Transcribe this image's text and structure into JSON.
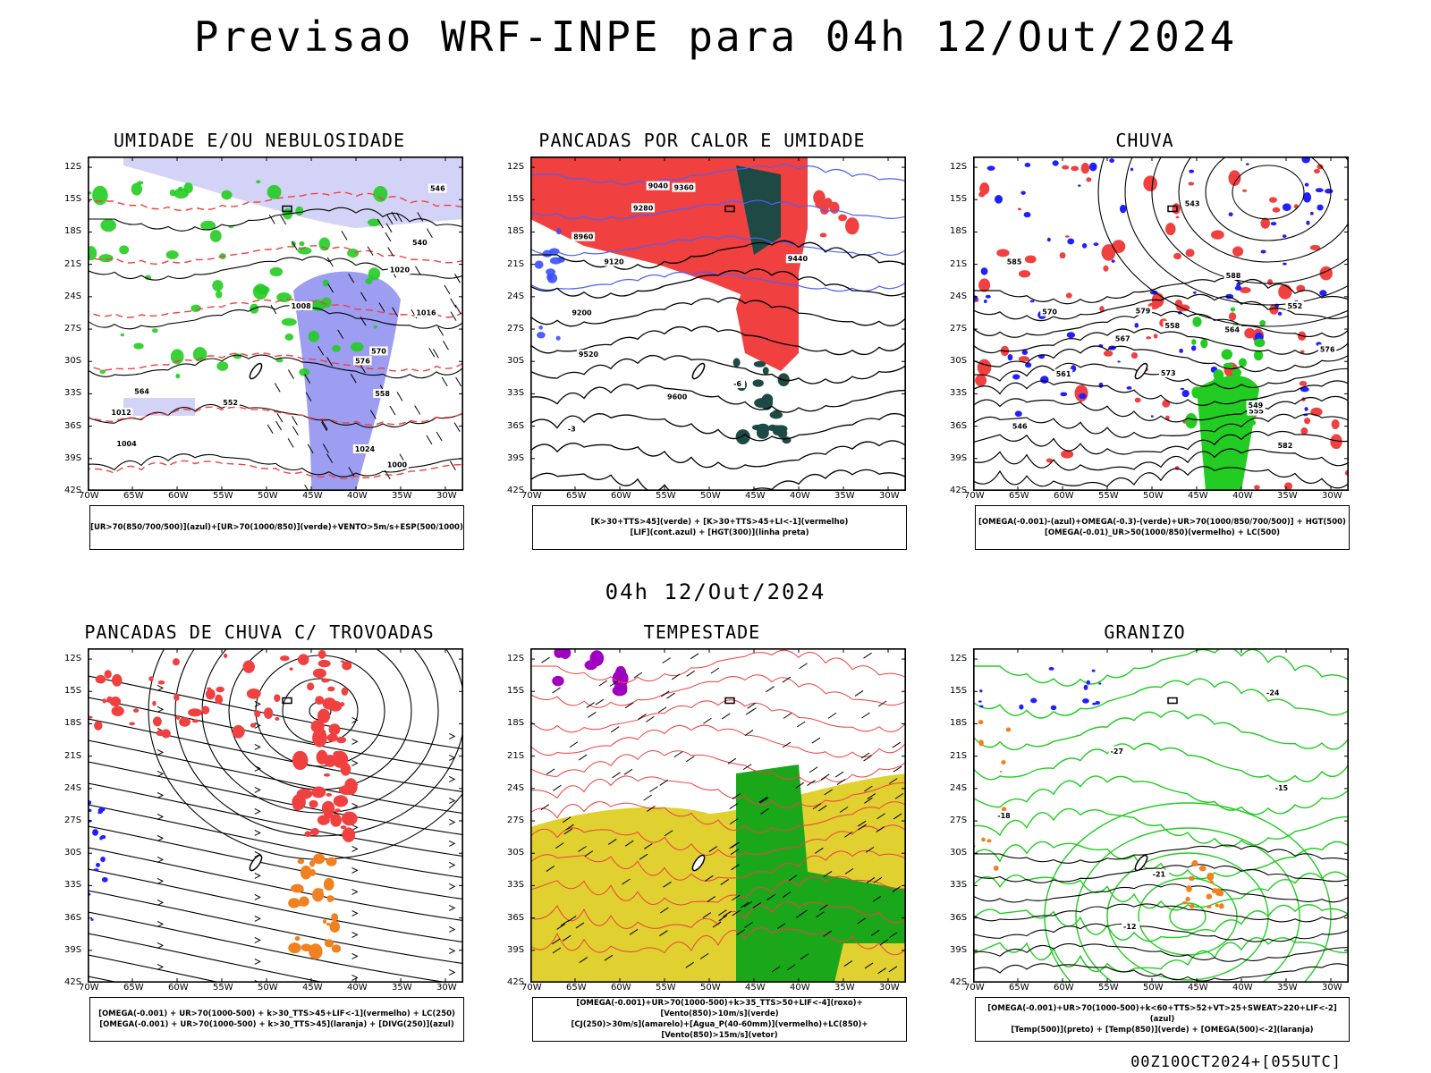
{
  "header": {
    "title": "Previsao WRF-INPE  para 04h 12/Out/2024"
  },
  "middle": {
    "title": "04h 12/Out/2024"
  },
  "footer": {
    "run": "00Z10OCT2024+[055UTC]"
  },
  "axes": {
    "lat_ticks": [
      "12S",
      "15S",
      "18S",
      "21S",
      "24S",
      "27S",
      "30S",
      "33S",
      "36S",
      "39S",
      "42S"
    ],
    "lon_ticks": [
      "70W",
      "65W",
      "60W",
      "55W",
      "50W",
      "45W",
      "40W",
      "35W",
      "30W"
    ]
  },
  "panels": [
    {
      "id": "umidade",
      "title": "UMIDADE E/OU NEBULOSIDADE",
      "legend": [
        "[UR>70(850/700/500)](azul)+[UR>70(1000/850)](verde)+VENTO>5m/s+ESP(500/1000)"
      ],
      "labels": [
        "1012",
        "1024",
        "1020",
        "1016",
        "1008",
        "1004",
        "1000",
        "570",
        "576",
        "564",
        "558",
        "552",
        "546",
        "540"
      ]
    },
    {
      "id": "pancadas-calor",
      "title": "PANCADAS POR CALOR E UMIDADE",
      "legend": [
        "[K>30+TTS>45](verde) + [K>30+TTS>45+LI<-1](vermelho)",
        "[LIF](cont.azul) + [HGT(300)](linha preta)"
      ],
      "labels": [
        "9600",
        "9520",
        "9440",
        "9360",
        "9280",
        "9200",
        "9120",
        "9040",
        "8960",
        "-3",
        "-6"
      ]
    },
    {
      "id": "chuva",
      "title": "CHUVA",
      "legend": [
        "[OMEGA(-0.001)-(azul)+OMEGA(-0.3)-(verde)+UR>70(1000/850/700/500)] + HGT(500)",
        "[OMEGA(-0.01)_UR>50(1000/850)(vermelho) + LC(500)"
      ],
      "labels": [
        "588",
        "585",
        "582",
        "579",
        "576",
        "573",
        "570",
        "567",
        "564",
        "561",
        "558",
        "555",
        "552",
        "549",
        "546",
        "543"
      ]
    },
    {
      "id": "trovoadas",
      "title": "PANCADAS DE CHUVA C/ TROVOADAS",
      "legend": [
        "[OMEGA(-0.001) + UR>70(1000-500) + k>30_TTS>45+LIF<-1](vermelho) + LC(250)",
        "[OMEGA(-0.001) + UR>70(1000-500) + k>30_TTS>45](laranja) + [DIVG(250)](azul)"
      ],
      "labels": []
    },
    {
      "id": "tempestade",
      "title": "TEMPESTADE",
      "legend": [
        "[OMEGA(-0.001)+UR>70(1000-500)+k>35_TTS>50+LIF<-4](roxo)+[Vento(850)>10m/s](verde)",
        "[CJ(250)>30m/s](amarelo)+[Agua_P(40-60mm)](vermelho)+LC(850)+[Vento(850)>15m/s](vetor)"
      ],
      "labels": []
    },
    {
      "id": "granizo",
      "title": "GRANIZO",
      "legend": [
        "[OMEGA(-0.001)+UR>70(1000-500)+k<60+TTS>52+VT>25+SWEAT>220+LIF<-2](azul)",
        "[Temp(500)](preto) + [Temp(850)](verde) + [OMEGA(500)<-2](laranja)"
      ],
      "labels": [
        "-12",
        "-15",
        "-18",
        "-21",
        "-24",
        "-27"
      ]
    }
  ],
  "colors": {
    "blue_fill": "#8c8cf0",
    "light_blue": "#c8c8f5",
    "green": "#22cc22",
    "red": "#f04040",
    "dark_teal": "#1e4a46",
    "orange": "#f08020",
    "yellow": "#e0d030",
    "purple": "#a000c0",
    "dark_blue": "#2020ff"
  }
}
